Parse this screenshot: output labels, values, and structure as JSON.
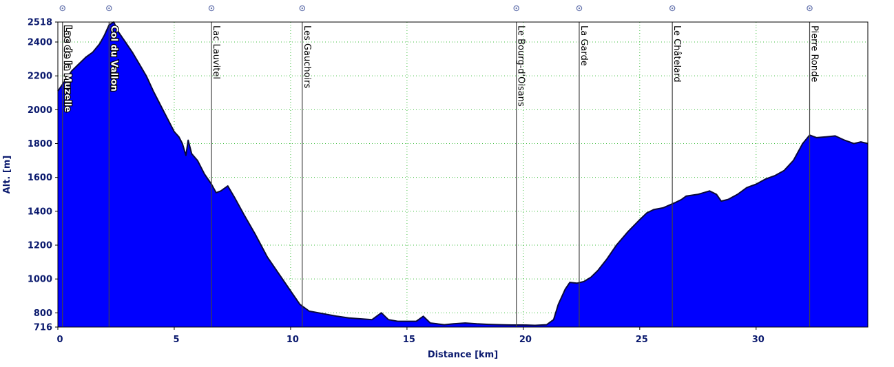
{
  "chart_data": {
    "type": "area",
    "xlabel": "Distance [km]",
    "ylabel": "Alt. [m]",
    "xlim": [
      0,
      34.8
    ],
    "ylim": [
      716,
      2518
    ],
    "x_ticks": [
      "0",
      "5",
      "10",
      "15",
      "20",
      "25",
      "30"
    ],
    "x_tick_values": [
      0,
      5,
      10,
      15,
      20,
      25,
      30
    ],
    "y_ticks": [
      "716",
      "800",
      "1000",
      "1200",
      "1400",
      "1600",
      "1800",
      "2000",
      "2200",
      "2400",
      "2518"
    ],
    "y_tick_values": [
      716,
      800,
      1000,
      1200,
      1400,
      1600,
      1800,
      2000,
      2200,
      2400,
      2518
    ],
    "grid": true,
    "colors": {
      "fill": "#0000ff",
      "line": "#0a0a3a",
      "grid": "#3fbf3f",
      "text": "#0b1a6e",
      "marker": "#6a78b0"
    },
    "series": [
      {
        "x": [
          0,
          0.3,
          0.6,
          0.9,
          1.2,
          1.5,
          1.8,
          2.0,
          2.2,
          2.4,
          2.6,
          2.9,
          3.2,
          3.5,
          3.8,
          4.1,
          4.4,
          4.7,
          5.0,
          5.2,
          5.35,
          5.5,
          5.6,
          5.75,
          6.0,
          6.3,
          6.6,
          6.8,
          7.0,
          7.3,
          7.6,
          8.0,
          8.5,
          9.0,
          9.5,
          10.0,
          10.4,
          10.8,
          11.2,
          11.6,
          12.0,
          12.5,
          13.0,
          13.5,
          13.9,
          14.2,
          14.6,
          15.0,
          15.4,
          15.7,
          16.0,
          16.3,
          16.6,
          17.0,
          17.5,
          18.0,
          18.5,
          19.0,
          19.5,
          20.0,
          20.5,
          21.0,
          21.3,
          21.5,
          21.8,
          22.0,
          22.3,
          22.6,
          22.9,
          23.2,
          23.6,
          24.0,
          24.5,
          25.0,
          25.3,
          25.6,
          26.0,
          26.5,
          26.8,
          27.0,
          27.5,
          28.0,
          28.3,
          28.5,
          28.8,
          29.2,
          29.6,
          30.0,
          30.4,
          30.8,
          31.2,
          31.6,
          32.0,
          32.3,
          32.6,
          33.0,
          33.4,
          33.8,
          34.2,
          34.5,
          34.8
        ],
        "values": [
          2110,
          2170,
          2230,
          2270,
          2310,
          2340,
          2390,
          2440,
          2500,
          2518,
          2460,
          2400,
          2340,
          2270,
          2200,
          2110,
          2030,
          1950,
          1870,
          1840,
          1800,
          1730,
          1820,
          1740,
          1700,
          1620,
          1560,
          1510,
          1520,
          1550,
          1480,
          1380,
          1260,
          1130,
          1030,
          930,
          850,
          810,
          800,
          790,
          780,
          770,
          765,
          760,
          800,
          760,
          750,
          750,
          750,
          780,
          740,
          735,
          730,
          735,
          740,
          735,
          732,
          730,
          728,
          728,
          726,
          730,
          760,
          850,
          940,
          980,
          975,
          985,
          1010,
          1050,
          1120,
          1200,
          1280,
          1350,
          1390,
          1410,
          1420,
          1450,
          1470,
          1490,
          1500,
          1520,
          1500,
          1460,
          1470,
          1500,
          1540,
          1560,
          1590,
          1610,
          1640,
          1700,
          1800,
          1850,
          1835,
          1840,
          1845,
          1820,
          1800,
          1810,
          1800
        ]
      }
    ],
    "annotations": [
      {
        "label": "Lac de la Muzelle",
        "x": 0.2
      },
      {
        "label": "Col du Vallon",
        "x": 2.2
      },
      {
        "label": "Lac Lauvitel",
        "x": 6.6
      },
      {
        "label": "Les Gauchoirs",
        "x": 10.5
      },
      {
        "label": "Le Bourg-d'Oisans",
        "x": 19.7
      },
      {
        "label": "La Garde",
        "x": 22.4
      },
      {
        "label": "Le Châtelard",
        "x": 26.4
      },
      {
        "label": "Pierre Ronde",
        "x": 32.3
      }
    ]
  }
}
